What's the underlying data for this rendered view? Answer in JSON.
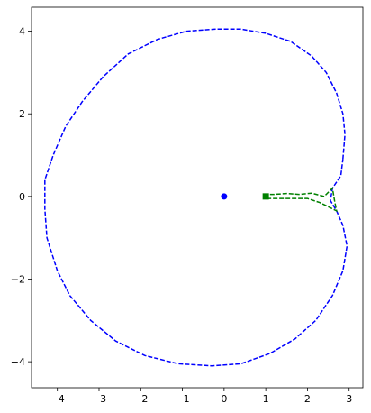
{
  "chart_data": {
    "type": "line",
    "xlim": [
      -4.62,
      3.33
    ],
    "ylim": [
      -4.63,
      4.58
    ],
    "xticks": [
      {
        "value": -4,
        "label": "−4"
      },
      {
        "value": -3,
        "label": "−3"
      },
      {
        "value": -2,
        "label": "−2"
      },
      {
        "value": -1,
        "label": "−1"
      },
      0,
      1,
      2,
      3
    ],
    "yticks": [
      {
        "value": -4,
        "label": "−4"
      },
      {
        "value": -2,
        "label": "−2"
      },
      0,
      2,
      4
    ],
    "series": [
      {
        "color": "#0000ff",
        "linestyle": "dashed",
        "x": [
          2.85,
          2.9,
          2.85,
          2.7,
          2.45,
          2.1,
          1.6,
          1.0,
          0.4,
          -0.2,
          -0.9,
          -1.6,
          -2.3,
          -2.9,
          -3.4,
          -3.8,
          -4.1,
          -4.3,
          -4.3,
          -4.25,
          -4.0,
          -3.7,
          -3.2,
          -2.6,
          -1.9,
          -1.1,
          -0.3,
          0.4,
          1.1,
          1.7,
          2.2,
          2.6,
          2.85,
          2.95,
          2.85,
          2.7,
          2.55,
          2.6,
          2.8,
          2.85
        ],
        "y": [
          0.9,
          1.5,
          2.0,
          2.5,
          3.0,
          3.4,
          3.75,
          3.95,
          4.05,
          4.05,
          4.0,
          3.8,
          3.45,
          2.9,
          2.3,
          1.7,
          1.0,
          0.4,
          -0.3,
          -1.0,
          -1.8,
          -2.4,
          -3.0,
          -3.5,
          -3.85,
          -4.05,
          -4.1,
          -4.05,
          -3.8,
          -3.45,
          -3.0,
          -2.4,
          -1.8,
          -1.2,
          -0.7,
          -0.35,
          -0.1,
          0.2,
          0.5,
          0.9
        ]
      },
      {
        "color": "#008000",
        "linestyle": "dashed",
        "x": [
          0.95,
          1.2,
          1.5,
          1.8,
          2.1,
          2.4,
          2.6,
          2.65,
          2.7,
          2.5,
          2.3,
          2.0,
          1.6,
          1.3,
          1.0
        ],
        "y": [
          0.05,
          0.05,
          0.07,
          0.05,
          0.08,
          0.0,
          0.2,
          -0.1,
          -0.35,
          -0.25,
          -0.15,
          -0.05,
          -0.05,
          -0.05,
          -0.05
        ]
      },
      {
        "color": "#0000ff",
        "marker": "circle",
        "x": [
          0
        ],
        "y": [
          0
        ]
      },
      {
        "color": "#008000",
        "marker": "square",
        "x": [
          1
        ],
        "y": [
          0
        ]
      }
    ]
  }
}
